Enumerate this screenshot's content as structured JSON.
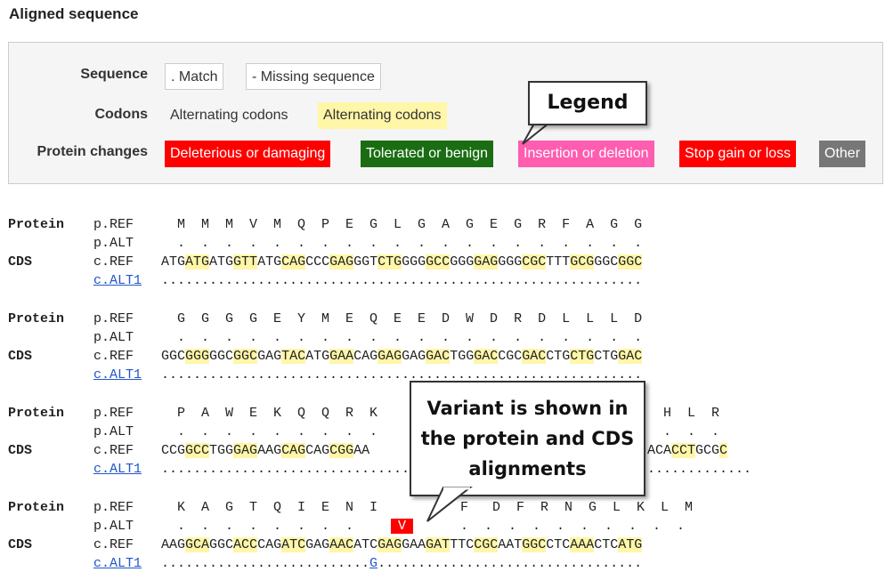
{
  "title": "Aligned sequence",
  "legend": {
    "sequence_label": "Sequence",
    "match": ". Match",
    "missing": "- Missing sequence",
    "codons_label": "Codons",
    "codon_plain": "Alternating codons",
    "codon_highlight": "Alternating codons",
    "protein_changes_label": "Protein changes",
    "deleterious": "Deleterious or damaging",
    "tolerated": "Tolerated or benign",
    "indel": "Insertion or deletion",
    "stop": "Stop gain or loss",
    "other": "Other"
  },
  "callouts": {
    "legend": "Legend",
    "variant": "Variant is shown in the protein and CDS alignments"
  },
  "labels": {
    "protein": "Protein",
    "cds": "CDS",
    "pref": "p.REF",
    "palt": "p.ALT",
    "cref": "c.REF",
    "calt": "c.ALT1"
  },
  "blocks": [
    {
      "protein": "M  M  M  V  M  Q  P  E  G  L  G  A  G  E  G  R  F  A  G  G",
      "palt": ".  .  .  .  .  .  .  .  .  .  .  .  .  .  .  .  .  .  .  .",
      "codons": [
        "ATG",
        "ATG",
        "ATG",
        "GTT",
        "ATG",
        "CAG",
        "CCC",
        "GAG",
        "GGT",
        "CTG",
        "GGG",
        "GCC",
        "GGG",
        "GAG",
        "GGG",
        "CGC",
        "TTT",
        "GCG",
        "GGC",
        "GGC"
      ],
      "calt": "............................................................"
    },
    {
      "protein": "G  G  G  G  E  Y  M  E  Q  E  E  D  W  D  R  D  L  L  L  D",
      "palt": ".  .  .  .  .  .  .  .  .  .  .  .  .  .  .  .  .  .  .  .",
      "codons": [
        "GGC",
        "GGG",
        "GGC",
        "GGC",
        "GAG",
        "TAC",
        "ATG",
        "GAA",
        "CAG",
        "GAG",
        "GAG",
        "GAC",
        "TGG",
        "GAC",
        "CGC",
        "GAC",
        "CTG",
        "CTG",
        "CTG",
        "GAC"
      ],
      "calt": "............................................................"
    },
    {
      "protein": "P  A  W  E  K  Q  Q  R  K",
      "protein_tail": "H  L  R",
      "palt": ".  .  .  .  .  .  .  .  .",
      "palt_tail": ".  .  .",
      "codons": [
        "CCG",
        "GCC",
        "TGG",
        "GAG",
        "AAG",
        "CAG",
        "CAG",
        "CGG",
        "AA"
      ],
      "codons_tail": [
        "ACA",
        "CCT",
        "GCG",
        "C"
      ],
      "calt": "......................................",
      "calt_tail": "............."
    },
    {
      "protein": "K  A  G  T  Q  I  E  N  I  V",
      "variant": "V",
      "protein_mid": "F",
      "protein_tail": "D  F  R  N  G  L  K  L  M",
      "palt": ".  .  .  .  .  .  .  .",
      "palt_tail": ".  .  .  .  .  .  .  .  .  .",
      "codons": [
        "AAG",
        "GCA",
        "GGC",
        "ACC",
        "CAG",
        "ATC",
        "GAG",
        "AAC",
        "ATC",
        "GAG",
        "GAA",
        "GAT",
        "TTC",
        "CGC",
        "AAT",
        "GGC",
        "CTC",
        "AAA",
        "CTC",
        "ATG"
      ],
      "calt_pre": "..........................",
      "calt_var": "G",
      "calt_post": "................................."
    }
  ]
}
